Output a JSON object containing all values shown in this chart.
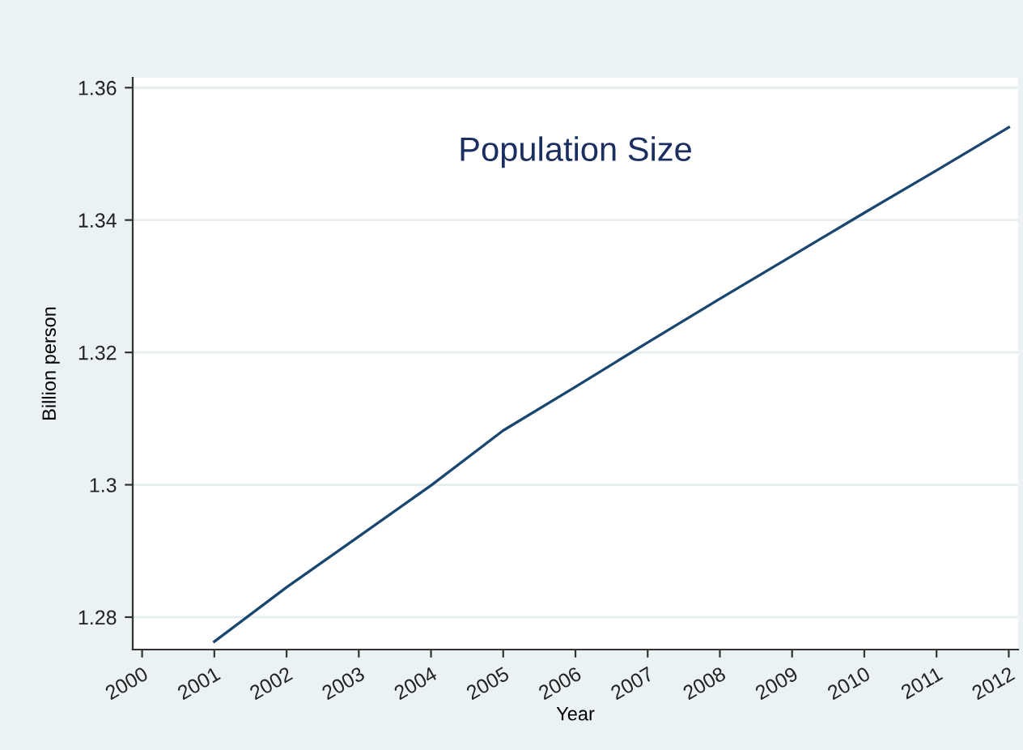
{
  "chart_data": {
    "type": "line",
    "title": "Population Size",
    "xlabel": "Year",
    "ylabel": "Billion person",
    "x": [
      2001,
      2002,
      2003,
      2004,
      2005,
      2006,
      2007,
      2008,
      2009,
      2010,
      2011,
      2012
    ],
    "series": [
      {
        "color": "#1a476f",
        "values": [
          1.2763,
          1.2845,
          1.2922,
          1.2999,
          1.3082,
          1.3148,
          1.3215,
          1.3281,
          1.3346,
          1.3411,
          1.3475,
          1.354
        ]
      }
    ],
    "xlim": [
      1999.87,
      2012.13
    ],
    "ylim": [
      1.2751,
      1.3615
    ],
    "xticks": [
      2000,
      2001,
      2002,
      2003,
      2004,
      2005,
      2006,
      2007,
      2008,
      2009,
      2010,
      2011,
      2012
    ],
    "yticks": [
      1.28,
      1.3,
      1.32,
      1.34,
      1.36
    ],
    "grid": "y",
    "legend": false,
    "marker": "none",
    "line_style": "solid"
  }
}
